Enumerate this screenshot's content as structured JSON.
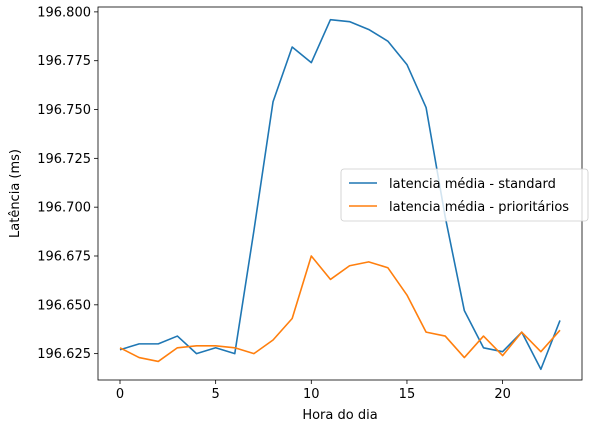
{
  "chart_data": {
    "type": "line",
    "title": "",
    "xlabel": "Hora do dia",
    "ylabel": "Latência (ms)",
    "xlim": [
      -1.15,
      24.15
    ],
    "ylim": [
      196.6115,
      196.8025
    ],
    "x_ticks": [
      0,
      5,
      10,
      15,
      20
    ],
    "x_tick_labels": [
      "0",
      "5",
      "10",
      "15",
      "20"
    ],
    "y_ticks": [
      196.625,
      196.65,
      196.675,
      196.7,
      196.725,
      196.75,
      196.775,
      196.8
    ],
    "y_tick_labels": [
      "196.625",
      "196.650",
      "196.675",
      "196.700",
      "196.725",
      "196.750",
      "196.775",
      "196.800"
    ],
    "grid": false,
    "legend_position": "center-right",
    "x": [
      0,
      1,
      2,
      3,
      4,
      5,
      6,
      7,
      8,
      9,
      10,
      11,
      12,
      13,
      14,
      15,
      16,
      17,
      18,
      19,
      20,
      21,
      22,
      23
    ],
    "series": [
      {
        "name": "latencia média - standard",
        "color": "#1f77b4",
        "values": [
          196.627,
          196.63,
          196.63,
          196.634,
          196.625,
          196.628,
          196.625,
          196.688,
          196.754,
          196.782,
          196.774,
          196.796,
          196.795,
          196.791,
          196.785,
          196.773,
          196.751,
          196.695,
          196.647,
          196.628,
          196.626,
          196.636,
          196.617,
          196.642
        ]
      },
      {
        "name": "latencia média - prioritários",
        "color": "#ff7f0e",
        "values": [
          196.628,
          196.623,
          196.621,
          196.628,
          196.629,
          196.629,
          196.628,
          196.625,
          196.632,
          196.643,
          196.675,
          196.663,
          196.67,
          196.672,
          196.669,
          196.655,
          196.636,
          196.634,
          196.623,
          196.634,
          196.624,
          196.636,
          196.626,
          196.637
        ]
      }
    ]
  }
}
